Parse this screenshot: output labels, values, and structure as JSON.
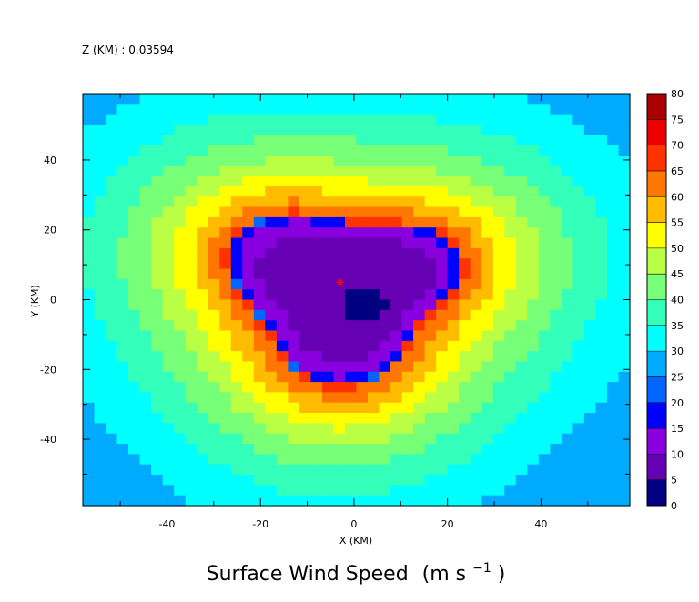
{
  "header": {
    "zlabel": "Z (KM) : 0.03594"
  },
  "chart_data": {
    "type": "heatmap",
    "title": "Surface Wind Speed",
    "units_base": "(m s",
    "units_exp": "−1",
    "units_close": ")",
    "xlabel": "X (KM)",
    "ylabel": "Y (KM)",
    "xlim": [
      -58,
      59
    ],
    "ylim": [
      -59,
      59
    ],
    "x_ticks": [
      -40,
      -20,
      0,
      20,
      40
    ],
    "x_tick_labels": [
      "-40",
      "-20",
      "0",
      "20",
      "40"
    ],
    "y_ticks": [
      -40,
      -20,
      0,
      20,
      40
    ],
    "y_tick_labels": [
      "-40",
      "-20",
      "0",
      "20",
      "40"
    ],
    "minor_tick_step": 10,
    "levels": [
      0,
      5,
      10,
      15,
      20,
      25,
      30,
      35,
      40,
      45,
      50,
      55,
      60,
      65,
      70,
      75,
      80
    ],
    "level_labels": [
      "0",
      "5",
      "10",
      "15",
      "20",
      "25",
      "30",
      "35",
      "40",
      "45",
      "50",
      "55",
      "60",
      "65",
      "70",
      "75",
      "80"
    ],
    "colors": [
      "#000080",
      "#6600b3",
      "#8800dd",
      "#0000ff",
      "#0066ff",
      "#00aaff",
      "#00ffff",
      "#33ffbb",
      "#77ff77",
      "#bbff44",
      "#ffff00",
      "#ffbb00",
      "#ff7700",
      "#ff3300",
      "#ee0000",
      "#aa0000"
    ],
    "center_marker": {
      "x": -3,
      "y": 5,
      "symbol": "*",
      "color": "#ff0000"
    },
    "cells": {
      "rows": 40,
      "cols": 48
    }
  }
}
